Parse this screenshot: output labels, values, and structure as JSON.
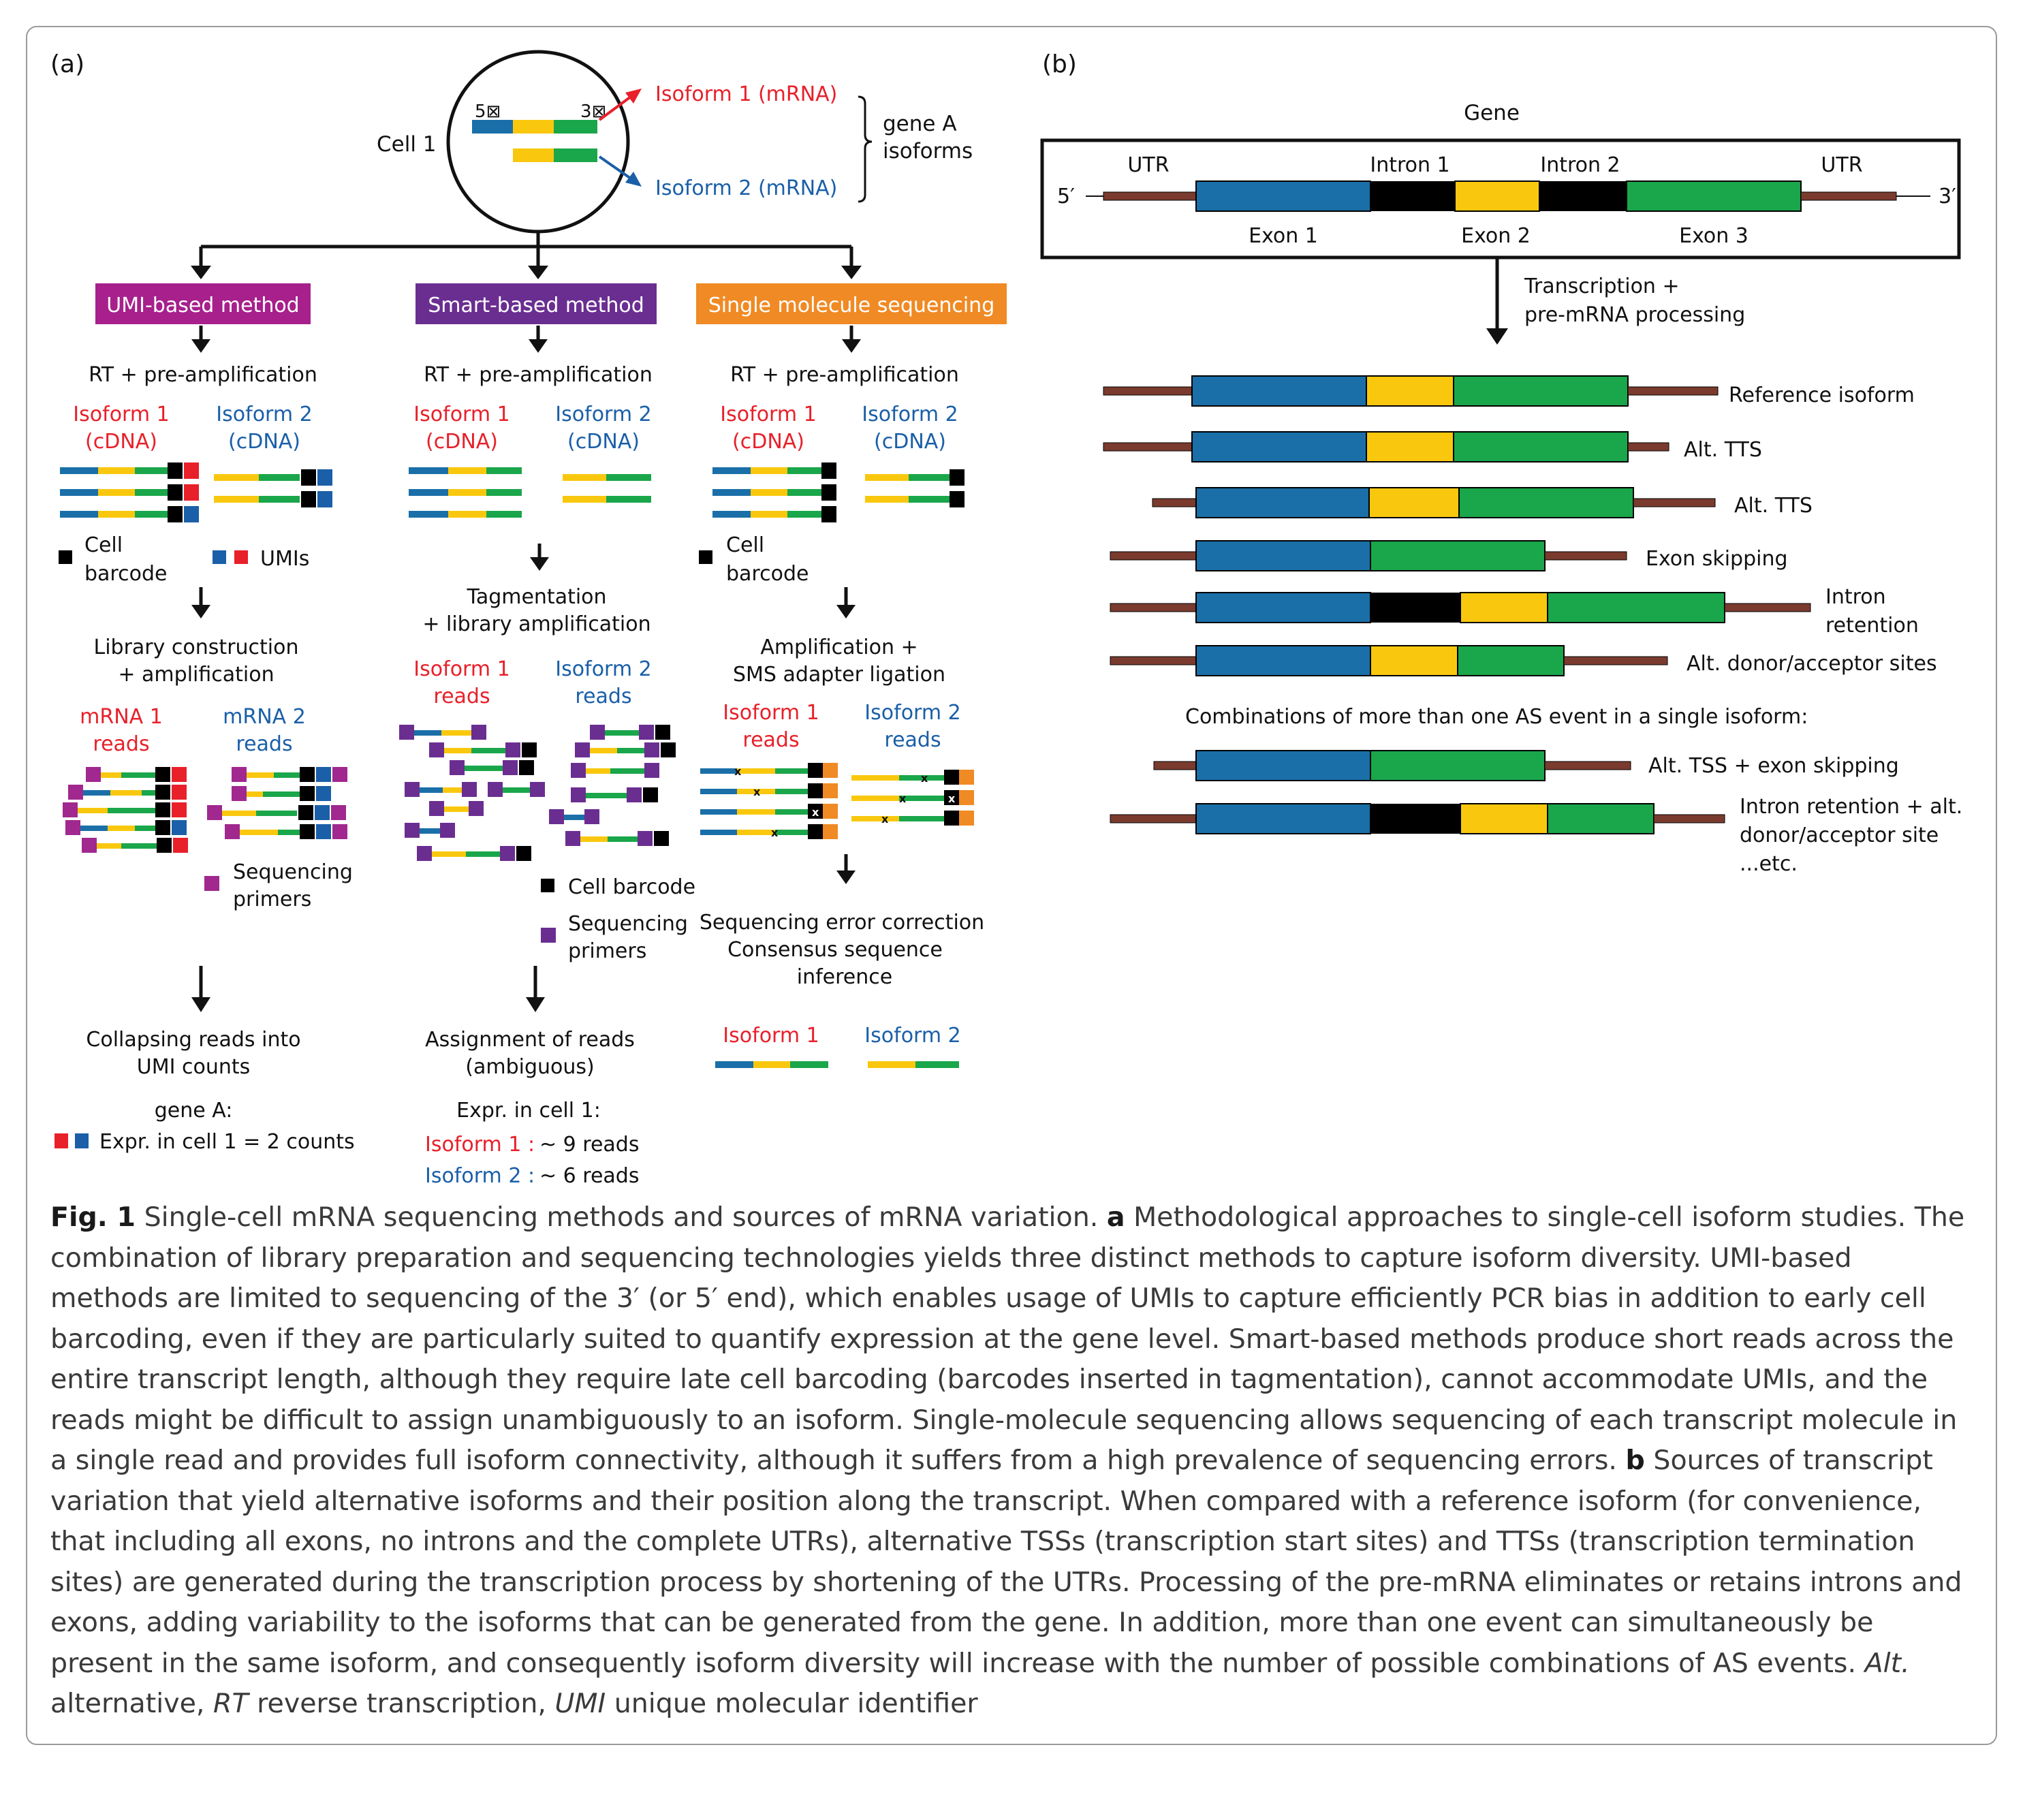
{
  "panel_a": {
    "label": "(a)",
    "cell_label": "Cell 1",
    "five_prime": "5⊠",
    "three_prime": "3⊠",
    "isoform1_mrna": "Isoform 1 (mRNA)",
    "isoform2_mrna": "Isoform 2 (mRNA)",
    "gene_isoforms_1": "gene A",
    "gene_isoforms_2": "isoforms",
    "methods": {
      "umi": "UMI-based method",
      "smart": "Smart-based method",
      "sms": "Single molecule sequencing"
    },
    "rt_step": "RT + pre-amplification",
    "iso1": "Isoform 1",
    "iso2": "Isoform 2",
    "cdna": "(cDNA)",
    "cell_barcode_1": "Cell",
    "cell_barcode_2": "barcode",
    "umis": "UMIs",
    "lib_1": "Library construction",
    "lib_2": "+ amplification",
    "mrna1_1": "mRNA 1",
    "mrna2_1": "mRNA 2",
    "reads": "reads",
    "seq_primers_1": "Sequencing",
    "seq_primers_2": "primers",
    "collapse_1": "Collapsing reads into",
    "collapse_2": "UMI counts",
    "gene_a": "gene A:",
    "expr_umi": "Expr. in cell 1 = 2 counts",
    "tag_1": "Tagmentation",
    "tag_2": "+ library amplification",
    "cell_barcode_full": "Cell barcode",
    "assign_1": "Assignment of reads",
    "assign_2": "(ambiguous)",
    "expr_cell": "Expr. in cell 1:",
    "smart_iso1_count": "Isoform 1 :",
    "smart_iso2_count": "Isoform 2 :",
    "smart_iso1_reads": "~ 9 reads",
    "smart_iso2_reads": "~ 6 reads",
    "amp_1": "Amplification +",
    "amp_2": "SMS adapter ligation",
    "err_1": "Sequencing error correction",
    "err_2": "Consensus sequence",
    "err_3": "inference"
  },
  "panel_b": {
    "label": "(b)",
    "gene": "Gene",
    "utr": "UTR",
    "intron1": "Intron 1",
    "intron2": "Intron 2",
    "exon1": "Exon 1",
    "exon2": "Exon 2",
    "exon3": "Exon 3",
    "five": "5′",
    "three": "3′",
    "transcription_1": "Transcription +",
    "transcription_2": "pre-mRNA processing",
    "isoforms": [
      "Reference isoform",
      "Alt. TTS",
      "Alt. TTS",
      "Exon skipping",
      "Intron",
      "retention",
      "Alt. donor/acceptor sites"
    ],
    "combinations": "Combinations of more than one AS event in a single isoform:",
    "combo1": "Alt. TSS + exon skipping",
    "combo2_1": "Intron retention + alt.",
    "combo2_2": "donor/acceptor site",
    "combo2_3": "...etc."
  },
  "colors": {
    "exon1": "#1a6fa8",
    "exon2": "#f9c80e",
    "exon3": "#1aa64a",
    "intron": "#000000",
    "utr": "#7a3b2e",
    "umi_red": "#e8202a",
    "umi_blue": "#1a5fa8",
    "primer": "#a0288f",
    "umi_box": "#a7208c",
    "smart_box": "#6a2e91",
    "sms_box": "#f08a24",
    "red_text": "#e8202a",
    "blue_text": "#1a5fa8"
  },
  "caption": {
    "fig": "Fig. 1",
    "p1": " Single-cell mRNA sequencing methods and sources of mRNA variation. ",
    "a": "a",
    "p2": " Methodological approaches to single-cell isoform studies. The combination of library preparation and sequencing technologies yields three distinct methods to capture isoform diversity. UMI-based methods are limited to sequencing of the 3′ (or 5′ end), which enables usage of UMIs to capture efficiently PCR bias in addition to early cell barcoding, even if they are particularly suited to quantify expression at the gene level. Smart-based methods produce short reads across the entire transcript length, although they require late cell barcoding (barcodes inserted in tagmentation), cannot accommodate UMIs, and the reads might be difficult to assign unambiguously to an isoform. Single-molecule sequencing allows sequencing of each transcript molecule in a single read and provides full isoform connectivity, although it suffers from a high prevalence of sequencing errors. ",
    "b": "b",
    "p3": " Sources of transcript variation that yield alternative isoforms and their position along the transcript. When compared with a reference isoform (for convenience, that including all exons, no introns and the complete UTRs), alternative TSSs (transcription start sites) and TTSs (transcription termination sites) are generated during the transcription process by shortening of the UTRs. Processing of the pre-mRNA eliminates or retains introns and exons, adding variability to the isoforms that can be generated from the gene. In addition, more than one event can simultaneously be present in the same isoform, and consequently isoform diversity will increase with the number of possible combinations of AS events. ",
    "alt_i": "Alt.",
    "alt_t": " alternative, ",
    "rt_i": "RT",
    "rt_t": " reverse transcription, ",
    "umi_i": "UMI",
    "umi_t": " unique molecular identifier"
  }
}
